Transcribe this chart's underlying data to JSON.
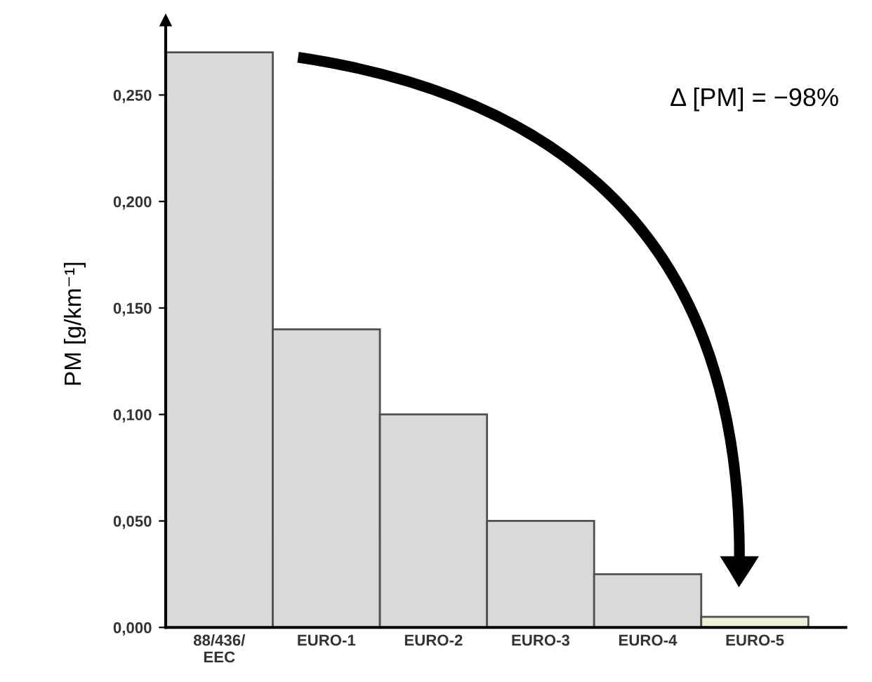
{
  "chart_data": {
    "type": "bar",
    "ylabel": "PM [g/km⁻¹]",
    "categories": [
      "88/436/\nEEC",
      "EURO-1",
      "EURO-2",
      "EURO-3",
      "EURO-4",
      "EURO-5"
    ],
    "values": [
      0.27,
      0.14,
      0.1,
      0.05,
      0.025,
      0.005
    ],
    "colors": [
      "#d9d9d9",
      "#d9d9d9",
      "#d9d9d9",
      "#d9d9d9",
      "#d9d9d9",
      "#eef0d8"
    ],
    "ylim": [
      0,
      0.285
    ],
    "yticks": [
      {
        "value": 0,
        "label": "0,000"
      },
      {
        "value": 0.05,
        "label": "0,050"
      },
      {
        "value": 0.1,
        "label": "0,100"
      },
      {
        "value": 0.15,
        "label": "0,150"
      },
      {
        "value": 0.2,
        "label": "0,200"
      },
      {
        "value": 0.25,
        "label": "0,250"
      }
    ],
    "annotations": [
      "Δ [PM] = −98%"
    ],
    "grid": false,
    "legend": false
  }
}
